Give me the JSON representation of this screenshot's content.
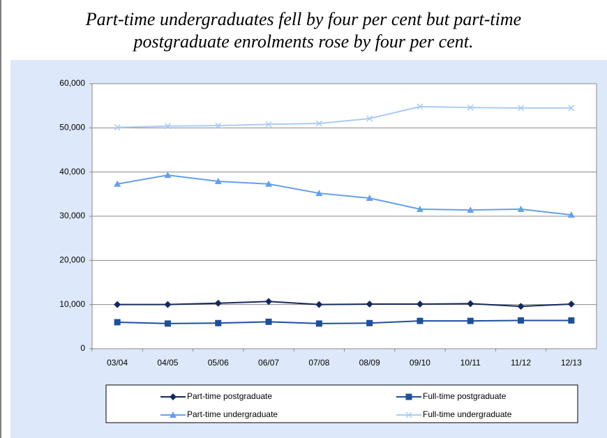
{
  "chart_data": {
    "type": "line",
    "title": "Part-time undergraduates fell by four per cent but part-time postgraduate enrolments rose by four per cent.",
    "categories": [
      "03/04",
      "04/05",
      "05/06",
      "06/07",
      "07/08",
      "08/09",
      "09/10",
      "10/11",
      "11/12",
      "12/13"
    ],
    "series": [
      {
        "name": "Part-time postgraduate",
        "color": "#14295e",
        "marker": "diamond",
        "values": [
          10000,
          10000,
          10300,
          10700,
          10000,
          10100,
          10100,
          10200,
          9600,
          10100
        ]
      },
      {
        "name": "Full-time postgraduate",
        "color": "#1d4f9c",
        "marker": "square",
        "values": [
          6000,
          5700,
          5800,
          6100,
          5700,
          5800,
          6300,
          6300,
          6400,
          6400
        ]
      },
      {
        "name": "Part-time undergraduate",
        "color": "#62a0ee",
        "marker": "triangle",
        "values": [
          37300,
          39300,
          37900,
          37300,
          35200,
          34100,
          31600,
          31400,
          31600,
          30300
        ]
      },
      {
        "name": "Full-time undergraduate",
        "color": "#a9ccf5",
        "marker": "x",
        "values": [
          50100,
          50400,
          50500,
          50800,
          51000,
          52100,
          54800,
          54600,
          54500,
          54500
        ]
      }
    ],
    "ylim": [
      0,
      60000
    ],
    "yticks": [
      0,
      {
        "value": 10000,
        "label": "10,000"
      },
      {
        "value": 20000,
        "label": "20,000"
      },
      {
        "value": 30000,
        "label": "30,000"
      },
      {
        "value": 40000,
        "label": "40,000"
      },
      {
        "value": 50000,
        "label": "50,000"
      },
      {
        "value": 60000,
        "label": "60,000"
      }
    ],
    "grid": true
  }
}
